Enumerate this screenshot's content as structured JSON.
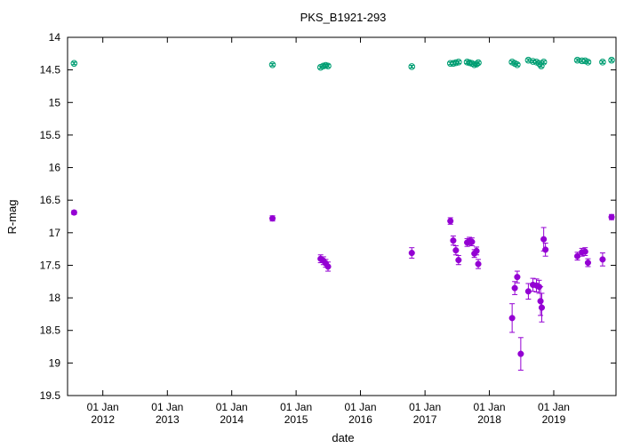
{
  "chart_data": {
    "type": "scatter",
    "title": "PKS_B1921-293",
    "xlabel": "date",
    "ylabel": "R-mag",
    "y_inverted": true,
    "ylim": [
      14,
      19.5
    ],
    "xlim": [
      "2011-06-15",
      "2019-12-20"
    ],
    "grid": false,
    "legend": "none",
    "y_ticks": [
      "14",
      "14.5",
      "15",
      "15.5",
      "16",
      "16.5",
      "17",
      "17.5",
      "18",
      "18.5",
      "19",
      "19.5"
    ],
    "x_ticks": [
      {
        "date": "2012-01-01",
        "line1": "01 Jan",
        "line2": "2012"
      },
      {
        "date": "2013-01-01",
        "line1": "01 Jan",
        "line2": "2013"
      },
      {
        "date": "2014-01-01",
        "line1": "01 Jan",
        "line2": "2014"
      },
      {
        "date": "2015-01-01",
        "line1": "01 Jan",
        "line2": "2015"
      },
      {
        "date": "2016-01-01",
        "line1": "01 Jan",
        "line2": "2016"
      },
      {
        "date": "2017-01-01",
        "line1": "01 Jan",
        "line2": "2017"
      },
      {
        "date": "2018-01-01",
        "line1": "01 Jan",
        "line2": "2018"
      },
      {
        "date": "2019-01-01",
        "line1": "01 Jan",
        "line2": "2019"
      }
    ],
    "series": [
      {
        "marker": "open-circle-cross",
        "color": "#009e73",
        "points": [
          {
            "x": "2011-07-22",
            "y": 14.4,
            "err": 0.02
          },
          {
            "x": "2014-08-20",
            "y": 14.42,
            "err": 0.02
          },
          {
            "x": "2015-05-20",
            "y": 14.46,
            "err": 0.02
          },
          {
            "x": "2015-06-05",
            "y": 14.44,
            "err": 0.02
          },
          {
            "x": "2015-06-18",
            "y": 14.43,
            "err": 0.02
          },
          {
            "x": "2015-07-01",
            "y": 14.44,
            "err": 0.02
          },
          {
            "x": "2016-10-18",
            "y": 14.45,
            "err": 0.02
          },
          {
            "x": "2017-05-25",
            "y": 14.4,
            "err": 0.02
          },
          {
            "x": "2017-06-10",
            "y": 14.4,
            "err": 0.02
          },
          {
            "x": "2017-06-25",
            "y": 14.39,
            "err": 0.02
          },
          {
            "x": "2017-07-10",
            "y": 14.38,
            "err": 0.02
          },
          {
            "x": "2017-08-28",
            "y": 14.38,
            "err": 0.02
          },
          {
            "x": "2017-09-10",
            "y": 14.39,
            "err": 0.02
          },
          {
            "x": "2017-09-24",
            "y": 14.4,
            "err": 0.02
          },
          {
            "x": "2017-10-08",
            "y": 14.42,
            "err": 0.02
          },
          {
            "x": "2017-10-20",
            "y": 14.41,
            "err": 0.02
          },
          {
            "x": "2017-10-30",
            "y": 14.39,
            "err": 0.02
          },
          {
            "x": "2018-05-10",
            "y": 14.38,
            "err": 0.02
          },
          {
            "x": "2018-05-25",
            "y": 14.4,
            "err": 0.02
          },
          {
            "x": "2018-06-08",
            "y": 14.42,
            "err": 0.02
          },
          {
            "x": "2018-08-10",
            "y": 14.35,
            "err": 0.02
          },
          {
            "x": "2018-09-05",
            "y": 14.37,
            "err": 0.02
          },
          {
            "x": "2018-09-25",
            "y": 14.38,
            "err": 0.02
          },
          {
            "x": "2018-10-10",
            "y": 14.4,
            "err": 0.02
          },
          {
            "x": "2018-10-22",
            "y": 14.44,
            "err": 0.02
          },
          {
            "x": "2018-11-05",
            "y": 14.38,
            "err": 0.02
          },
          {
            "x": "2019-05-15",
            "y": 14.35,
            "err": 0.02
          },
          {
            "x": "2019-06-10",
            "y": 14.36,
            "err": 0.02
          },
          {
            "x": "2019-06-28",
            "y": 14.36,
            "err": 0.02
          },
          {
            "x": "2019-07-14",
            "y": 14.38,
            "err": 0.02
          },
          {
            "x": "2019-10-05",
            "y": 14.38,
            "err": 0.02
          },
          {
            "x": "2019-11-25",
            "y": 14.35,
            "err": 0.02
          }
        ]
      },
      {
        "marker": "filled-circle",
        "color": "#9400d3",
        "points": [
          {
            "x": "2011-07-22",
            "y": 16.69,
            "err": 0.03
          },
          {
            "x": "2014-08-20",
            "y": 16.78,
            "err": 0.04
          },
          {
            "x": "2015-05-20",
            "y": 17.4,
            "err": 0.06
          },
          {
            "x": "2015-06-05",
            "y": 17.43,
            "err": 0.06
          },
          {
            "x": "2015-06-18",
            "y": 17.47,
            "err": 0.06
          },
          {
            "x": "2015-07-01",
            "y": 17.52,
            "err": 0.07
          },
          {
            "x": "2016-10-18",
            "y": 17.31,
            "err": 0.08
          },
          {
            "x": "2017-05-25",
            "y": 16.82,
            "err": 0.05
          },
          {
            "x": "2017-06-10",
            "y": 17.12,
            "err": 0.07
          },
          {
            "x": "2017-06-25",
            "y": 17.27,
            "err": 0.07
          },
          {
            "x": "2017-07-10",
            "y": 17.42,
            "err": 0.07
          },
          {
            "x": "2017-08-28",
            "y": 17.15,
            "err": 0.06
          },
          {
            "x": "2017-09-10",
            "y": 17.13,
            "err": 0.06
          },
          {
            "x": "2017-09-24",
            "y": 17.14,
            "err": 0.06
          },
          {
            "x": "2017-10-08",
            "y": 17.32,
            "err": 0.06
          },
          {
            "x": "2017-10-20",
            "y": 17.28,
            "err": 0.06
          },
          {
            "x": "2017-10-30",
            "y": 17.48,
            "err": 0.07
          },
          {
            "x": "2018-05-10",
            "y": 18.31,
            "err": 0.22
          },
          {
            "x": "2018-05-25",
            "y": 17.85,
            "err": 0.1
          },
          {
            "x": "2018-06-08",
            "y": 17.68,
            "err": 0.09
          },
          {
            "x": "2018-06-28",
            "y": 18.86,
            "err": 0.25
          },
          {
            "x": "2018-08-10",
            "y": 17.9,
            "err": 0.12
          },
          {
            "x": "2018-09-05",
            "y": 17.8,
            "err": 0.1
          },
          {
            "x": "2018-09-25",
            "y": 17.81,
            "err": 0.1
          },
          {
            "x": "2018-10-10",
            "y": 17.83,
            "err": 0.1
          },
          {
            "x": "2018-10-18",
            "y": 18.05,
            "err": 0.22
          },
          {
            "x": "2018-10-25",
            "y": 18.15,
            "err": 0.22
          },
          {
            "x": "2018-11-05",
            "y": 17.1,
            "err": 0.18
          },
          {
            "x": "2018-11-15",
            "y": 17.26,
            "err": 0.1
          },
          {
            "x": "2019-05-15",
            "y": 17.36,
            "err": 0.06
          },
          {
            "x": "2019-06-10",
            "y": 17.3,
            "err": 0.06
          },
          {
            "x": "2019-06-28",
            "y": 17.29,
            "err": 0.06
          },
          {
            "x": "2019-07-14",
            "y": 17.46,
            "err": 0.06
          },
          {
            "x": "2019-10-05",
            "y": 17.41,
            "err": 0.1
          },
          {
            "x": "2019-11-25",
            "y": 16.76,
            "err": 0.04
          }
        ]
      }
    ]
  }
}
